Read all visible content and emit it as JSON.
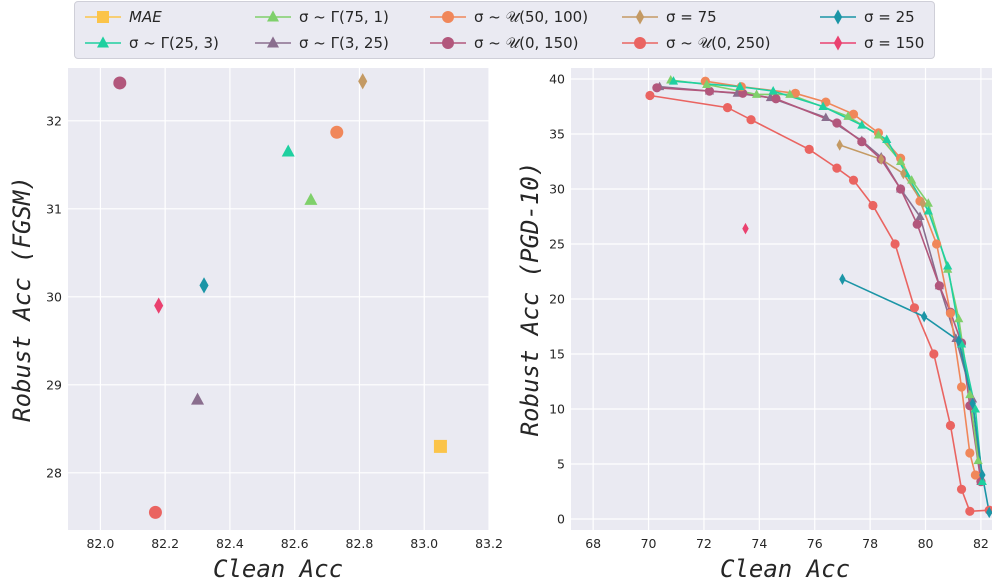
{
  "legend": [
    {
      "label": "MAE",
      "color": "#fbc44a",
      "marker": "square",
      "italic": true
    },
    {
      "label": "σ ~ Γ(25, 3)",
      "color": "#1fd0a0",
      "marker": "triangle"
    },
    {
      "label": "σ ~ Γ(75, 1)",
      "color": "#7fd06b",
      "marker": "triangle"
    },
    {
      "label": "σ ~ Γ(3, 25)",
      "color": "#8a6e8e",
      "marker": "triangle"
    },
    {
      "label": "σ ~ 𝒰(50, 100)",
      "color": "#f0875a",
      "marker": "circle"
    },
    {
      "label": "σ ~ 𝒰(0, 150)",
      "color": "#b2577c",
      "marker": "circle"
    },
    {
      "label": "σ = 75",
      "color": "#c49a64",
      "marker": "diamond"
    },
    {
      "label": "σ ~ 𝒰(0, 250)",
      "color": "#ea6461",
      "marker": "circle"
    },
    {
      "label": "σ = 25",
      "color": "#1b95a6",
      "marker": "diamond"
    },
    {
      "label": "σ = 150",
      "color": "#ea416f",
      "marker": "diamond"
    }
  ],
  "chart_data": [
    {
      "type": "scatter",
      "xlabel": "Clean Acc",
      "ylabel": "Robust Acc (FGSM)",
      "xlim": [
        81.9,
        83.2
      ],
      "ylim": [
        27.35,
        32.6
      ],
      "xticks": [
        "82.0",
        "82.2",
        "82.4",
        "82.6",
        "82.8",
        "83.0",
        "83.2"
      ],
      "yticks": [
        "28",
        "29",
        "30",
        "31",
        "32"
      ],
      "grid": true,
      "points": [
        {
          "series": "MAE",
          "x": 83.05,
          "y": 28.3
        },
        {
          "series": "σ ~ Γ(25, 3)",
          "x": 82.58,
          "y": 31.65
        },
        {
          "series": "σ ~ Γ(75, 1)",
          "x": 82.65,
          "y": 31.1
        },
        {
          "series": "σ ~ Γ(3, 25)",
          "x": 82.3,
          "y": 28.83
        },
        {
          "series": "σ ~ 𝒰(50, 100)",
          "x": 82.73,
          "y": 31.87
        },
        {
          "series": "σ ~ 𝒰(0, 150)",
          "x": 82.06,
          "y": 32.43
        },
        {
          "series": "σ = 75",
          "x": 82.81,
          "y": 32.45
        },
        {
          "series": "σ ~ 𝒰(0, 250)",
          "x": 82.17,
          "y": 27.55
        },
        {
          "series": "σ = 25",
          "x": 82.32,
          "y": 30.13
        },
        {
          "series": "σ = 150",
          "x": 82.18,
          "y": 29.9
        }
      ]
    },
    {
      "type": "line",
      "xlabel": "Clean Acc",
      "ylabel": "Robust Acc (PGD-10)",
      "xlim": [
        67.2,
        82.4
      ],
      "ylim": [
        -1,
        41
      ],
      "xticks": [
        "68",
        "70",
        "72",
        "74",
        "76",
        "78",
        "80",
        "82"
      ],
      "yticks": [
        "0",
        "5",
        "10",
        "15",
        "20",
        "25",
        "30",
        "35",
        "40"
      ],
      "grid": true,
      "series": [
        {
          "name": "σ ~ 𝒰(0, 250)",
          "x": [
            70.05,
            72.85,
            73.7,
            75.8,
            76.8,
            77.4,
            78.1,
            78.9,
            79.6,
            80.3,
            80.9,
            81.3,
            81.6,
            82.3
          ],
          "y": [
            38.5,
            37.4,
            36.3,
            33.6,
            31.9,
            30.8,
            28.5,
            25.0,
            19.2,
            15.0,
            8.5,
            2.7,
            0.7,
            0.8
          ]
        },
        {
          "name": "σ ~ Γ(3, 25)",
          "x": [
            70.4,
            72.2,
            73.2,
            74.4,
            76.4,
            77.7,
            78.4,
            79.1,
            79.8,
            80.5,
            81.1,
            81.7,
            82.0
          ],
          "y": [
            39.3,
            38.9,
            38.7,
            38.3,
            36.5,
            34.4,
            32.9,
            30.0,
            27.5,
            21.2,
            16.4,
            10.9,
            3.4
          ]
        },
        {
          "name": "σ ~ 𝒰(0, 150)",
          "x": [
            70.3,
            72.2,
            73.4,
            74.6,
            76.8,
            77.7,
            78.4,
            79.1,
            79.7,
            80.5,
            80.9,
            81.3,
            81.6,
            82.0
          ],
          "y": [
            39.2,
            38.9,
            38.7,
            38.2,
            36.0,
            34.3,
            32.7,
            30.0,
            26.8,
            21.2,
            18.8,
            16.0,
            10.3,
            3.4
          ]
        },
        {
          "name": "σ ~ 𝒰(50, 100)",
          "x": [
            72.05,
            73.35,
            75.3,
            76.4,
            77.4,
            78.3,
            79.1,
            79.8,
            80.4,
            80.9,
            81.3,
            81.6,
            81.8
          ],
          "y": [
            39.8,
            39.3,
            38.7,
            37.9,
            36.8,
            35.1,
            32.8,
            28.9,
            25.0,
            18.7,
            12.0,
            6.0,
            4.0
          ]
        },
        {
          "name": "σ ~ Γ(75, 1)",
          "x": [
            70.8,
            72.1,
            73.9,
            75.1,
            77.2,
            78.3,
            79.1,
            79.5,
            80.1,
            80.8,
            81.2,
            81.6,
            81.9
          ],
          "y": [
            39.9,
            39.5,
            38.6,
            38.6,
            36.6,
            34.9,
            32.5,
            30.8,
            28.7,
            22.7,
            18.2,
            11.3,
            5.3
          ]
        },
        {
          "name": "σ ~ Γ(25, 3)",
          "x": [
            70.9,
            73.3,
            74.5,
            76.3,
            77.7,
            78.6,
            79.3,
            80.1,
            80.8,
            81.3,
            81.8,
            82.05
          ],
          "y": [
            39.8,
            39.3,
            38.9,
            37.5,
            35.8,
            34.5,
            31.4,
            28.0,
            23.0,
            15.9,
            10.0,
            3.4
          ]
        },
        {
          "name": "σ = 75",
          "x": [
            76.9,
            78.4,
            79.2,
            79.9
          ],
          "y": [
            34.0,
            32.7,
            31.4,
            28.7
          ]
        },
        {
          "name": "σ = 25",
          "x": [
            77.0,
            79.95,
            81.2,
            81.7,
            82.05,
            82.3
          ],
          "y": [
            21.8,
            18.4,
            16.2,
            10.5,
            4.0,
            0.6
          ]
        },
        {
          "name": "σ = 150",
          "x": [
            73.5
          ],
          "y": [
            26.4
          ]
        }
      ]
    }
  ]
}
